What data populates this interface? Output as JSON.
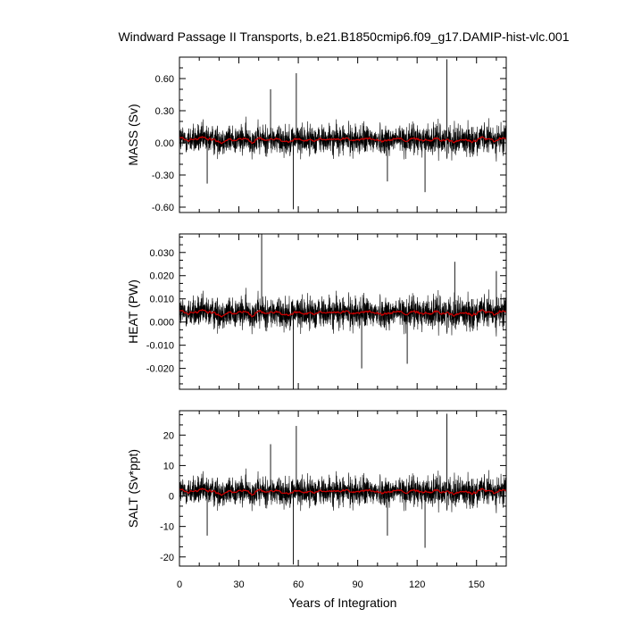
{
  "chart_data": {
    "type": "line",
    "title": "Windward Passage II Transports, b.e21.B1850cmip6.f09_g17.DAMIP-hist-vlc.001",
    "xlabel": "Years of Integration",
    "xlim": [
      0,
      165
    ],
    "xticks": [
      0,
      30,
      60,
      90,
      120,
      150
    ],
    "xtick_labels": [
      "0",
      "30",
      "60",
      "90",
      "120",
      "150"
    ],
    "grid": false,
    "legend": "none",
    "colors": {
      "raw": "#000000",
      "smooth": "#cc0000",
      "anomaly": "#999999"
    },
    "panels": [
      {
        "ylabel": "MASS (Sv)",
        "ylim": [
          -0.65,
          0.8
        ],
        "yticks": [
          -0.6,
          -0.3,
          0.0,
          0.3,
          0.6
        ],
        "ytick_labels": [
          "-0.60",
          "-0.30",
          "0.00",
          "0.30",
          "0.60"
        ],
        "mean": 0.03,
        "noise_amplitude": 0.1,
        "smooth_mean": 0.03,
        "spikes": [
          {
            "x": 59,
            "y": 0.65
          },
          {
            "x": 57.5,
            "y": -0.62
          },
          {
            "x": 135,
            "y": 0.78
          },
          {
            "x": 124,
            "y": -0.46
          },
          {
            "x": 46,
            "y": 0.5
          },
          {
            "x": 105,
            "y": -0.36
          },
          {
            "x": 14,
            "y": -0.38
          }
        ]
      },
      {
        "ylabel": "HEAT (PW)",
        "ylim": [
          -0.029,
          0.038
        ],
        "yticks": [
          -0.02,
          -0.01,
          0.0,
          0.01,
          0.02,
          0.03
        ],
        "ytick_labels": [
          "-0.020",
          "-0.010",
          "0.000",
          "0.010",
          "0.020",
          "0.030"
        ],
        "mean": 0.004,
        "noise_amplitude": 0.005,
        "smooth_mean": 0.004,
        "spikes": [
          {
            "x": 41.5,
            "y": 0.038
          },
          {
            "x": 57.5,
            "y": -0.029
          },
          {
            "x": 139,
            "y": 0.026
          },
          {
            "x": 115,
            "y": -0.018
          },
          {
            "x": 92,
            "y": -0.02
          },
          {
            "x": 160,
            "y": 0.022
          }
        ]
      },
      {
        "ylabel": "SALT (Sv*ppt)",
        "ylim": [
          -23,
          28
        ],
        "yticks": [
          -20,
          -10,
          0,
          10,
          20
        ],
        "ytick_labels": [
          "-20",
          "-10",
          "0",
          "10",
          "20"
        ],
        "mean": 1.5,
        "noise_amplitude": 3.5,
        "smooth_mean": 1.5,
        "spikes": [
          {
            "x": 59,
            "y": 23
          },
          {
            "x": 57.5,
            "y": -22.5
          },
          {
            "x": 135,
            "y": 27
          },
          {
            "x": 124,
            "y": -17
          },
          {
            "x": 46,
            "y": 17
          },
          {
            "x": 105,
            "y": -13
          },
          {
            "x": 14,
            "y": -13
          }
        ]
      }
    ]
  }
}
